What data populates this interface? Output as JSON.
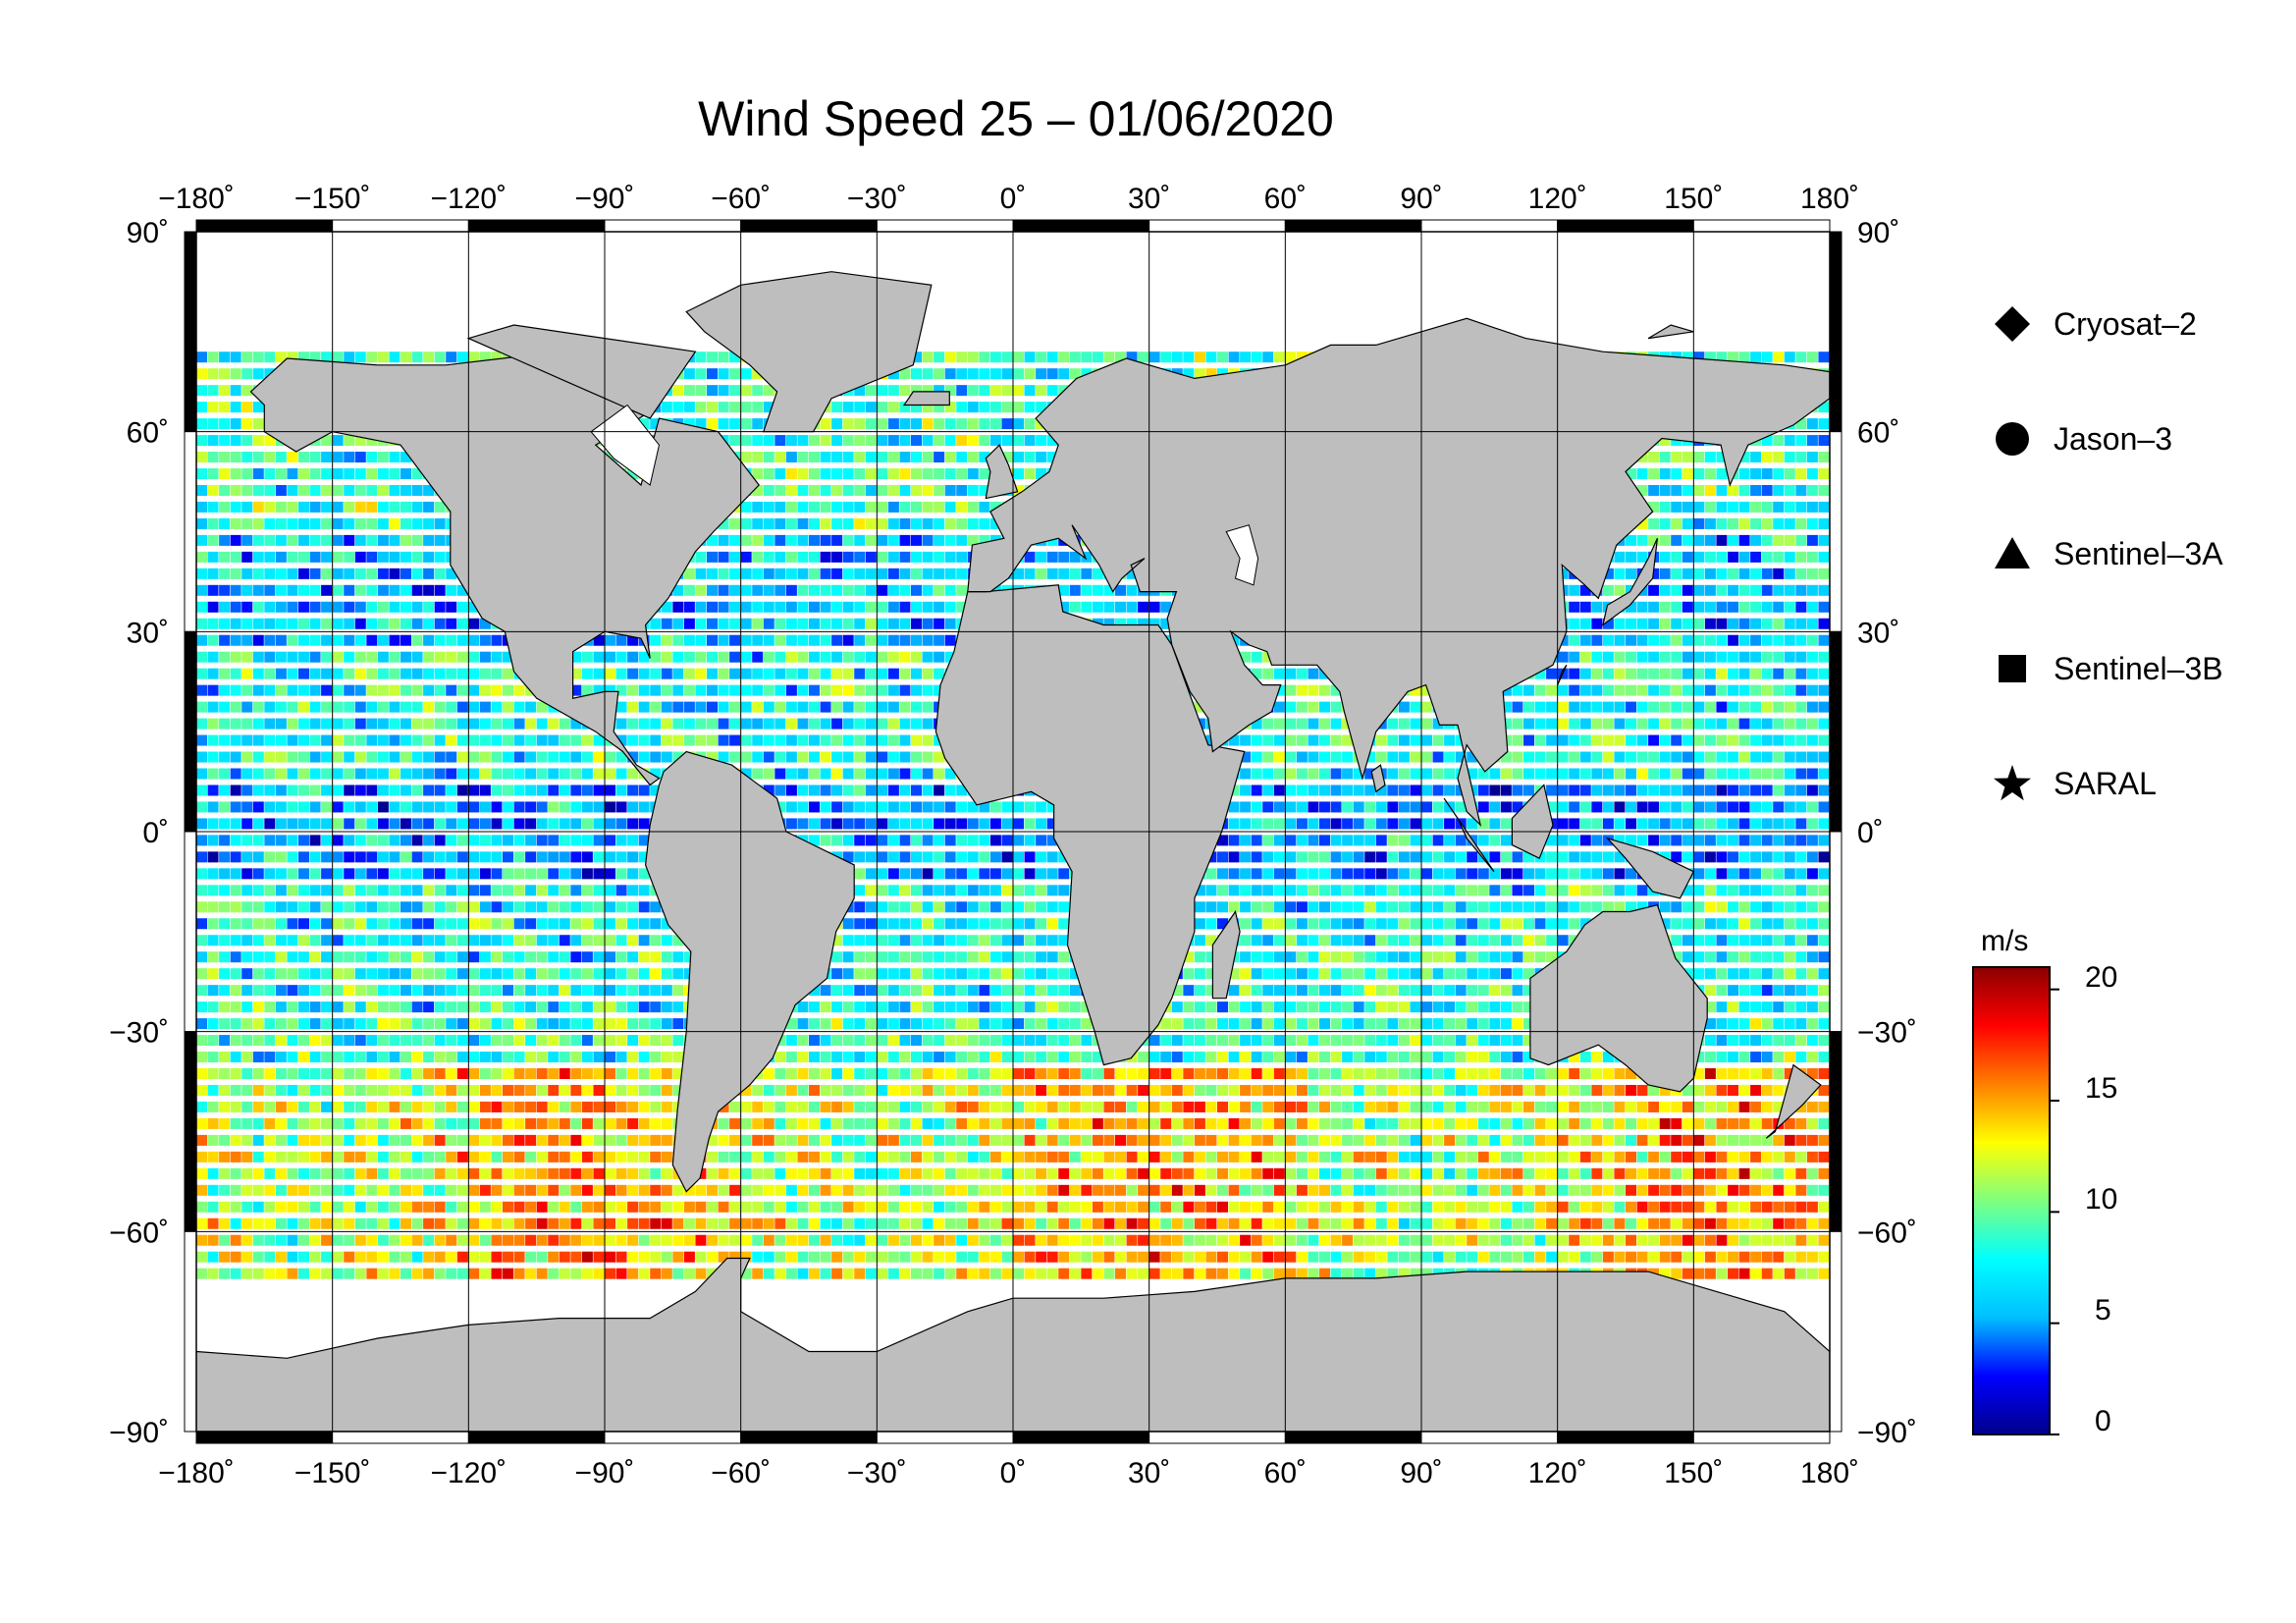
{
  "title": "Wind Speed 25 – 01/06/2020",
  "map": {
    "projection": "plate-carree",
    "lon_range": [
      -180,
      180
    ],
    "lat_range": [
      -90,
      90
    ],
    "lon_ticks": [
      "−180˚",
      "−150˚",
      "−120˚",
      "−90˚",
      "−60˚",
      "−30˚",
      "0˚",
      "30˚",
      "60˚",
      "90˚",
      "120˚",
      "150˚",
      "180˚"
    ],
    "lat_ticks": [
      "90˚",
      "60˚",
      "30˚",
      "0˚",
      "−30˚",
      "−60˚",
      "−90˚"
    ],
    "land_color": "#bebebe",
    "ice_color": "#ffffff",
    "grid": true
  },
  "legend": {
    "items": [
      {
        "label": "Cryosat–2",
        "symbol": "diamond-icon"
      },
      {
        "label": "Jason–3",
        "symbol": "circle-icon"
      },
      {
        "label": "Sentinel–3A",
        "symbol": "triangle-icon"
      },
      {
        "label": "Sentinel–3B",
        "symbol": "square-icon"
      },
      {
        "label": "SARAL",
        "symbol": "star-icon"
      }
    ]
  },
  "colorbar": {
    "unit": "m/s",
    "ticks": [
      "20",
      "15",
      "10",
      "5",
      "0"
    ],
    "range": [
      0,
      21
    ],
    "colormap": [
      "#00008b",
      "#0000ff",
      "#00bfff",
      "#00ffff",
      "#7fff7f",
      "#ffff00",
      "#ff7f00",
      "#ff0000",
      "#8b0000"
    ]
  }
}
